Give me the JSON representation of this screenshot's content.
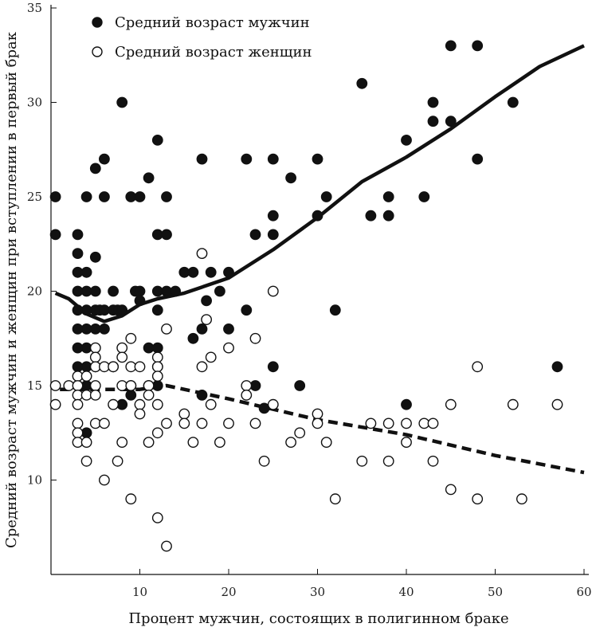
{
  "chart_data": {
    "type": "scatter",
    "title": "",
    "xlabel": "Процент мужчин, состоящих в полигинном браке",
    "ylabel": "Средний возраст мужчин и женщин при вступлении в первый брак",
    "xlim": [
      0,
      60
    ],
    "ylim": [
      5,
      35
    ],
    "x_ticks": [
      10,
      20,
      30,
      40,
      50,
      60
    ],
    "y_ticks": [
      10,
      15,
      20,
      25,
      30,
      35
    ],
    "legend_position": "top-left",
    "colors": {
      "men": "#111111",
      "women": "#ffffff",
      "stroke": "#111111"
    },
    "series": [
      {
        "name": "Средний возраст мужчин",
        "marker": "filled-circle",
        "points": [
          [
            0.5,
            25
          ],
          [
            0.5,
            23
          ],
          [
            3,
            23
          ],
          [
            3,
            22
          ],
          [
            3,
            21
          ],
          [
            3,
            20
          ],
          [
            3,
            19
          ],
          [
            3,
            18
          ],
          [
            3,
            17
          ],
          [
            3,
            16
          ],
          [
            3,
            15
          ],
          [
            4,
            25
          ],
          [
            4,
            21
          ],
          [
            4,
            20
          ],
          [
            4,
            19
          ],
          [
            4,
            18
          ],
          [
            4,
            17
          ],
          [
            4,
            16
          ],
          [
            4,
            15
          ],
          [
            4,
            12.5
          ],
          [
            5,
            26.5
          ],
          [
            5,
            21.8
          ],
          [
            5,
            20
          ],
          [
            5,
            19
          ],
          [
            5,
            18
          ],
          [
            5,
            16
          ],
          [
            5.5,
            19
          ],
          [
            6,
            27
          ],
          [
            6,
            25
          ],
          [
            6,
            19
          ],
          [
            6,
            18
          ],
          [
            7,
            20
          ],
          [
            7,
            19
          ],
          [
            7,
            16
          ],
          [
            7.5,
            19
          ],
          [
            8,
            30
          ],
          [
            8,
            19
          ],
          [
            8,
            14
          ],
          [
            9,
            25
          ],
          [
            9,
            15
          ],
          [
            9,
            14.5
          ],
          [
            9.5,
            20
          ],
          [
            10,
            25
          ],
          [
            10,
            20
          ],
          [
            10,
            19.5
          ],
          [
            11,
            26
          ],
          [
            11,
            17
          ],
          [
            11,
            15
          ],
          [
            12,
            28
          ],
          [
            12,
            23
          ],
          [
            12,
            20
          ],
          [
            12,
            19
          ],
          [
            12,
            17
          ],
          [
            12,
            16
          ],
          [
            12,
            15
          ],
          [
            13,
            25
          ],
          [
            13,
            23
          ],
          [
            13,
            20
          ],
          [
            14,
            20
          ],
          [
            15,
            21
          ],
          [
            16,
            21
          ],
          [
            16,
            17.5
          ],
          [
            17,
            27
          ],
          [
            17,
            18
          ],
          [
            17,
            14.5
          ],
          [
            17.5,
            19.5
          ],
          [
            18,
            21
          ],
          [
            19,
            20
          ],
          [
            20,
            21
          ],
          [
            20,
            18
          ],
          [
            22,
            27
          ],
          [
            22,
            19
          ],
          [
            23,
            23
          ],
          [
            23,
            15
          ],
          [
            24,
            13.8
          ],
          [
            25,
            27
          ],
          [
            25,
            24
          ],
          [
            25,
            23
          ],
          [
            25,
            16
          ],
          [
            27,
            26
          ],
          [
            28,
            15
          ],
          [
            30,
            27
          ],
          [
            30,
            24
          ],
          [
            31,
            25
          ],
          [
            32,
            19
          ],
          [
            35,
            31
          ],
          [
            36,
            24
          ],
          [
            38,
            25
          ],
          [
            38,
            24
          ],
          [
            40,
            28
          ],
          [
            40,
            14
          ],
          [
            42,
            25
          ],
          [
            43,
            30
          ],
          [
            43,
            29
          ],
          [
            45,
            33
          ],
          [
            45,
            29
          ],
          [
            48,
            33
          ],
          [
            48,
            27
          ],
          [
            52,
            30
          ],
          [
            57,
            16
          ]
        ],
        "trend": [
          [
            0.5,
            19.9
          ],
          [
            2,
            19.6
          ],
          [
            4,
            18.8
          ],
          [
            6,
            18.4
          ],
          [
            8,
            18.7
          ],
          [
            10,
            19.3
          ],
          [
            12,
            19.6
          ],
          [
            15,
            19.9
          ],
          [
            20,
            20.7
          ],
          [
            25,
            22.2
          ],
          [
            30,
            23.9
          ],
          [
            35,
            25.8
          ],
          [
            40,
            27.1
          ],
          [
            45,
            28.6
          ],
          [
            50,
            30.3
          ],
          [
            55,
            31.9
          ],
          [
            60,
            33
          ]
        ],
        "trend_style": "solid"
      },
      {
        "name": "Средний возраст женщин",
        "marker": "open-circle",
        "points": [
          [
            0.5,
            15
          ],
          [
            0.5,
            14
          ],
          [
            2,
            15
          ],
          [
            3,
            15.5
          ],
          [
            3,
            15
          ],
          [
            3,
            14.5
          ],
          [
            3,
            14
          ],
          [
            3,
            13
          ],
          [
            3,
            12.5
          ],
          [
            3,
            12
          ],
          [
            4,
            15.5
          ],
          [
            4,
            14.5
          ],
          [
            4,
            12
          ],
          [
            4,
            11
          ],
          [
            5,
            17
          ],
          [
            5,
            16.5
          ],
          [
            5,
            16
          ],
          [
            5,
            15
          ],
          [
            5,
            14.5
          ],
          [
            5,
            13
          ],
          [
            6,
            16
          ],
          [
            6,
            13
          ],
          [
            6,
            10
          ],
          [
            7,
            16
          ],
          [
            7,
            14
          ],
          [
            7.5,
            11
          ],
          [
            8,
            17
          ],
          [
            8,
            16.5
          ],
          [
            8,
            15
          ],
          [
            8,
            12
          ],
          [
            9,
            17.5
          ],
          [
            9,
            16
          ],
          [
            9,
            15
          ],
          [
            9,
            9
          ],
          [
            10,
            16
          ],
          [
            10,
            14
          ],
          [
            10,
            13.5
          ],
          [
            11,
            15
          ],
          [
            11,
            14.5
          ],
          [
            11,
            12
          ],
          [
            12,
            16.5
          ],
          [
            12,
            16
          ],
          [
            12,
            15.5
          ],
          [
            12,
            14
          ],
          [
            12,
            12.5
          ],
          [
            12,
            8
          ],
          [
            13,
            18
          ],
          [
            13,
            13
          ],
          [
            13,
            6.5
          ],
          [
            15,
            13.5
          ],
          [
            15,
            13
          ],
          [
            16,
            12
          ],
          [
            17,
            22
          ],
          [
            17,
            16
          ],
          [
            17,
            13
          ],
          [
            17.5,
            18.5
          ],
          [
            18,
            16.5
          ],
          [
            18,
            14
          ],
          [
            19,
            12
          ],
          [
            20,
            17
          ],
          [
            20,
            13
          ],
          [
            22,
            15
          ],
          [
            22,
            14.5
          ],
          [
            23,
            17.5
          ],
          [
            23,
            13
          ],
          [
            24,
            11
          ],
          [
            25,
            20
          ],
          [
            25,
            14
          ],
          [
            27,
            12
          ],
          [
            28,
            12.5
          ],
          [
            30,
            13.5
          ],
          [
            30,
            13
          ],
          [
            31,
            12
          ],
          [
            32,
            9
          ],
          [
            35,
            11
          ],
          [
            36,
            13
          ],
          [
            38,
            13
          ],
          [
            38,
            11
          ],
          [
            40,
            13
          ],
          [
            40,
            12
          ],
          [
            42,
            13
          ],
          [
            43,
            13
          ],
          [
            43,
            11
          ],
          [
            45,
            14
          ],
          [
            45,
            9.5
          ],
          [
            48,
            16
          ],
          [
            48,
            9
          ],
          [
            52,
            14
          ],
          [
            53,
            9
          ],
          [
            57,
            14
          ]
        ],
        "trend": [
          [
            1,
            14.8
          ],
          [
            10,
            14.8
          ],
          [
            13,
            15
          ],
          [
            20,
            14.3
          ],
          [
            30,
            13.2
          ],
          [
            40,
            12.4
          ],
          [
            50,
            11.3
          ],
          [
            60,
            10.4
          ]
        ],
        "trend_style": "dashed"
      }
    ]
  }
}
